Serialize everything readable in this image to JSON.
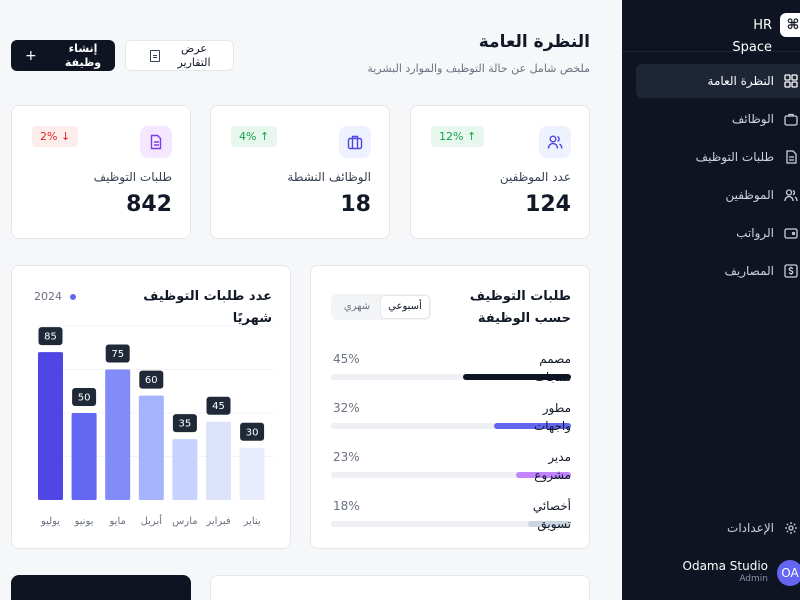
{
  "sidebar": {
    "brand": "HR Space",
    "brand_logo": "⌘",
    "items": [
      {
        "label": "النظرة العامة",
        "icon": "dashboard-icon",
        "active": true
      },
      {
        "label": "الوظائف",
        "icon": "briefcase-icon",
        "active": false
      },
      {
        "label": "طلبات التوظيف",
        "icon": "document-icon",
        "active": false
      },
      {
        "label": "الموظفين",
        "icon": "users-icon",
        "active": false
      },
      {
        "label": "الرواتب",
        "icon": "wallet-icon",
        "active": false
      },
      {
        "label": "المصاريف",
        "icon": "dollar-icon",
        "active": false
      }
    ],
    "settings_label": "الإعدادات",
    "user": {
      "initials": "OA",
      "name": "Odama Studio",
      "role": "Admin"
    }
  },
  "header": {
    "title": "النظرة العامة",
    "subtitle": "ملخص شامل عن حالة التوظيف والموارد البشرية",
    "create_button": "إنشاء وظيفة",
    "report_button": "عرض التقارير"
  },
  "stats": [
    {
      "label": "عدد الموظفين",
      "value": "124",
      "change": "12%",
      "trend": "up",
      "icon": "users-icon",
      "icon_bg": "#eef2ff",
      "icon_color": "#4f46e5"
    },
    {
      "label": "الوظائف النشطة",
      "value": "18",
      "change": "4%",
      "trend": "up",
      "icon": "briefcase-icon",
      "icon_bg": "#eef2ff",
      "icon_color": "#4f46e5"
    },
    {
      "label": "طلبات التوظيف",
      "value": "842",
      "change": "2%",
      "trend": "down",
      "icon": "document-icon",
      "icon_bg": "#f3e8ff",
      "icon_color": "#7c3aed"
    }
  ],
  "positions": {
    "title": "طلبات التوظيف حسب الوظيفة",
    "toggle": [
      "أسبوعي",
      "شهري"
    ],
    "toggle_active": "أسبوعي",
    "rows": [
      {
        "name": "مصمم منتجات",
        "percent": "45%",
        "value": 45,
        "color": "#0e1422"
      },
      {
        "name": "مطور واجهات",
        "percent": "32%",
        "value": 32,
        "color": "#6366f1"
      },
      {
        "name": "مدير مشروع",
        "percent": "23%",
        "value": 23,
        "color": "#c084fc"
      },
      {
        "name": "أخصائي تسويق",
        "percent": "18%",
        "value": 18,
        "color": "#cbd5e1"
      }
    ]
  },
  "chart_data": {
    "type": "bar",
    "title": "عدد طلبات التوظيف شهريًا",
    "legend": "2024",
    "categories": [
      "يوليو",
      "يونيو",
      "مايو",
      "أبريل",
      "مارس",
      "فبراير",
      "يناير"
    ],
    "values": [
      85,
      50,
      75,
      60,
      35,
      45,
      30
    ],
    "colors": [
      "#4f46e5",
      "#6366f1",
      "#818cf8",
      "#a5b4fc",
      "#c7d2fe",
      "#dde3fb",
      "#e8ecfd"
    ],
    "ylim": [
      0,
      100
    ],
    "grid": true
  }
}
